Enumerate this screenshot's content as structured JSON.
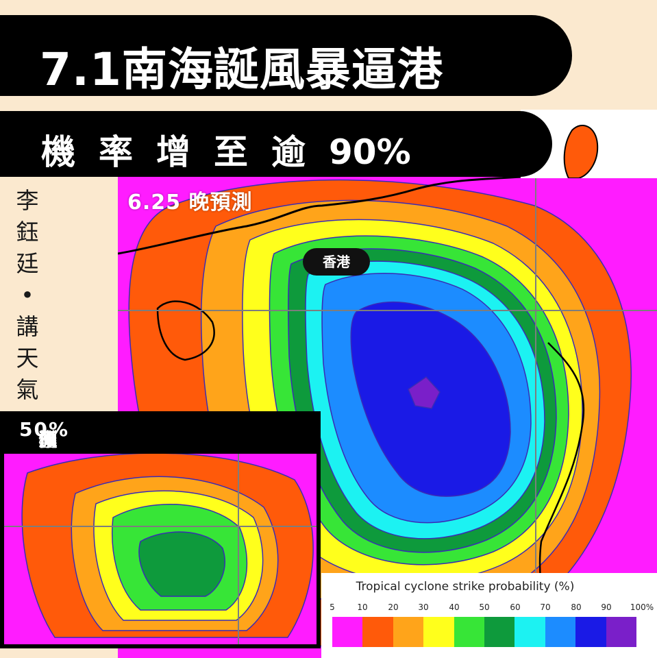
{
  "title": "7.1南海誕風暴逼港",
  "subtitle_chars": [
    "機",
    "率",
    "增",
    "至",
    "逾"
  ],
  "subtitle_value": "90%",
  "author_chars": [
    "李",
    "鈺",
    "廷",
    "•",
    "講",
    "天",
    "氣"
  ],
  "main_map": {
    "label": "6.25 晚預測",
    "hk_label": "香港"
  },
  "inset_map": {
    "label_chars": [
      "預",
      "測",
      "機",
      "率",
      "原",
      "僅"
    ],
    "label_value": "50%"
  },
  "legend": {
    "title": "Tropical cyclone strike probability (%)",
    "ticks": [
      "5",
      "10",
      "20",
      "30",
      "40",
      "50",
      "60",
      "70",
      "80",
      "90",
      "100%"
    ],
    "colors": [
      "#ff1cff",
      "#ff5a0a",
      "#ffa41a",
      "#ffff1c",
      "#37e537",
      "#0e9a3c",
      "#1cf2f2",
      "#1c8cff",
      "#1a1ae6",
      "#7a1fc9"
    ]
  }
}
